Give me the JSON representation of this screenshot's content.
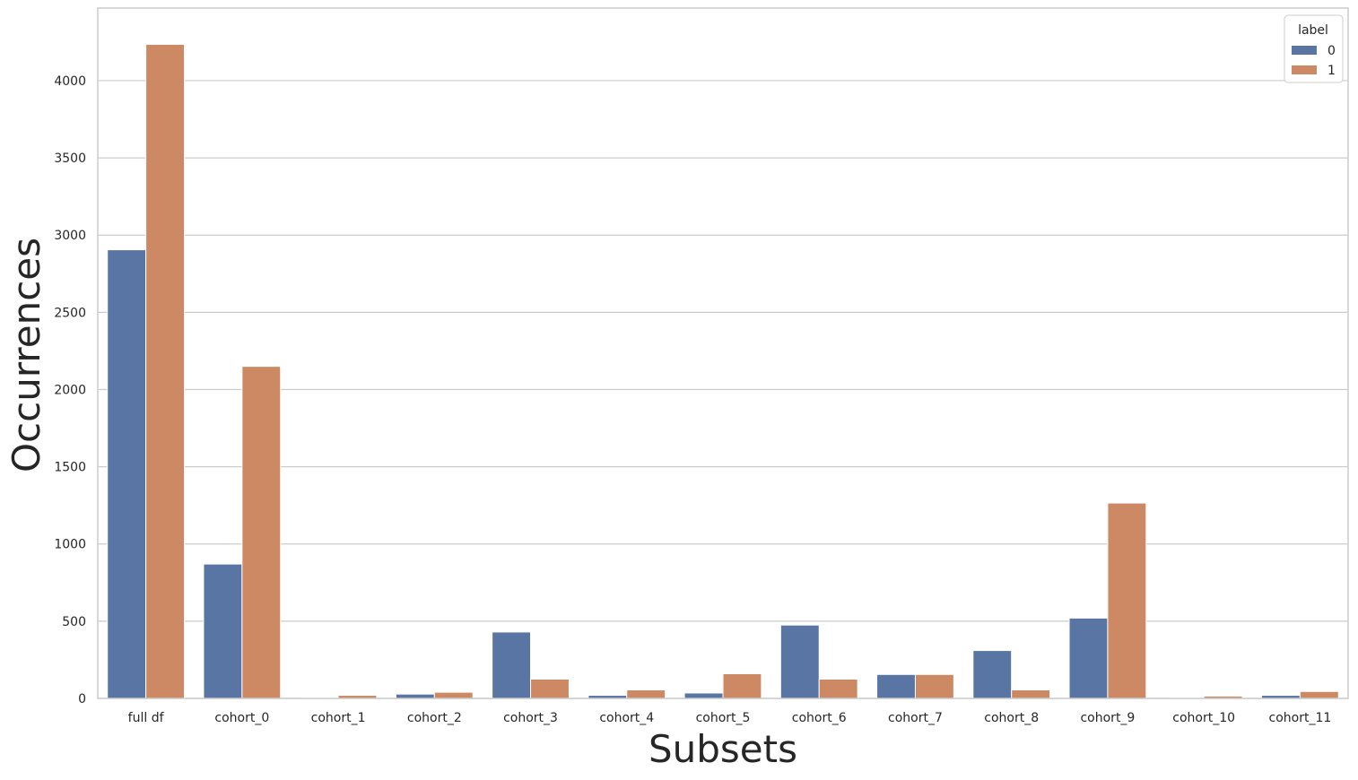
{
  "chart_data": {
    "type": "bar",
    "xlabel": "Subsets",
    "ylabel": "Occurrences",
    "categories": [
      "full df",
      "cohort_0",
      "cohort_1",
      "cohort_2",
      "cohort_3",
      "cohort_4",
      "cohort_5",
      "cohort_6",
      "cohort_7",
      "cohort_8",
      "cohort_9",
      "cohort_10",
      "cohort_11"
    ],
    "series": [
      {
        "name": "0",
        "color": "#5875a4",
        "values": [
          2905,
          870,
          5,
          28,
          430,
          20,
          35,
          475,
          155,
          310,
          520,
          5,
          20
        ]
      },
      {
        "name": "1",
        "color": "#cc8963",
        "values": [
          4235,
          2150,
          20,
          40,
          125,
          55,
          160,
          125,
          155,
          55,
          1265,
          15,
          45
        ]
      }
    ],
    "ylim": [
      0,
      4470
    ],
    "yticks": [
      0,
      500,
      1000,
      1500,
      2000,
      2500,
      3000,
      3500,
      4000
    ],
    "legend": {
      "title": "label",
      "placement": "top-right"
    },
    "grid": "horizontal",
    "colors": {
      "grid": "#cccccc",
      "spine": "#cccccc",
      "text": "#262626"
    }
  }
}
